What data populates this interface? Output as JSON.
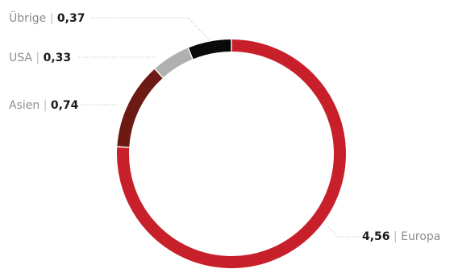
{
  "chart_data": {
    "type": "pie",
    "style": "donut",
    "categories": [
      "Europa",
      "Asien",
      "USA",
      "Übrige"
    ],
    "values": [
      "4,56",
      "0,74",
      "0,33",
      "0,37"
    ],
    "numeric_values": [
      4.56,
      0.74,
      0.33,
      0.37
    ],
    "separator": "|",
    "colors": [
      "#c8202a",
      "#6e1a14",
      "#b0b0b0",
      "#0a0a0a"
    ],
    "labels": [
      {
        "category": "Europa",
        "value": "4,56",
        "side": "right",
        "order": "value-first"
      },
      {
        "category": "Asien",
        "value": "0,74",
        "side": "left",
        "order": "name-first"
      },
      {
        "category": "USA",
        "value": "0,33",
        "side": "left",
        "order": "name-first"
      },
      {
        "category": "Übrige",
        "value": "0,37",
        "side": "left",
        "order": "name-first"
      }
    ],
    "legend": "none"
  }
}
